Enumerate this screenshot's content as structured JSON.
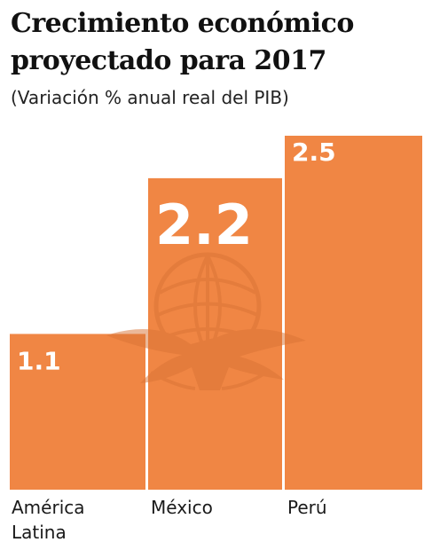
{
  "header": {
    "title_line1": "Crecimiento económico",
    "title_line2": "proyectado para 2017",
    "subtitle": "(Variación % anual real del PIB)"
  },
  "colors": {
    "bar": "#F08644",
    "bar_label": "#ffffff",
    "watermark": "#D97436"
  },
  "watermark_icon": "eagle-globe-seal-icon",
  "chart_data": {
    "type": "bar",
    "title": "Crecimiento económico proyectado para 2017",
    "subtitle": "(Variación % anual real del PIB)",
    "categories": [
      "América Latina",
      "México",
      "Perú"
    ],
    "category_labels": [
      [
        "América",
        "Latina"
      ],
      [
        "México"
      ],
      [
        "Perú"
      ]
    ],
    "values": [
      1.1,
      2.2,
      2.5
    ],
    "value_labels": [
      "1.1",
      "2.2",
      "2.5"
    ],
    "ylim": [
      0,
      2.5
    ],
    "grid": false,
    "legend": "none",
    "xlabel": "",
    "ylabel": ""
  }
}
